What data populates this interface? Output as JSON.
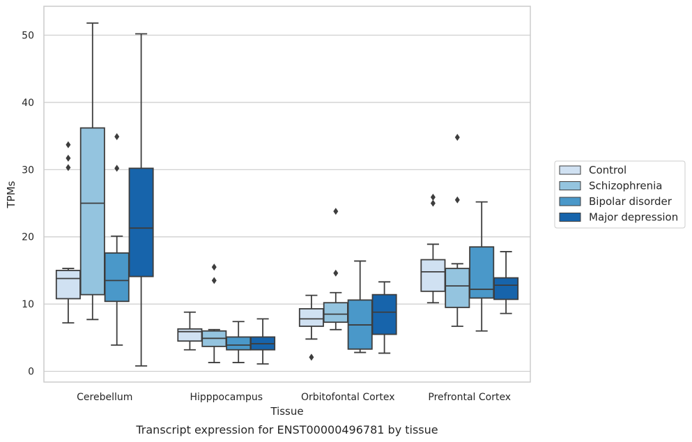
{
  "caption": "Transcript expression for ENST00000496781 by tissue",
  "chart_data": {
    "type": "box",
    "xlabel": "Tissue",
    "ylabel": "TPMs",
    "ylim": [
      -1.6,
      54.3
    ],
    "yticks": [
      0,
      10,
      20,
      30,
      40,
      50
    ],
    "grid": true,
    "legend_position": "right",
    "categories": [
      "Cerebellum",
      "Hipppocampus",
      "Orbitofontal Cortex",
      "Prefrontal Cortex"
    ],
    "series": [
      {
        "name": "Control",
        "color": "#d0e1f2",
        "boxes": [
          {
            "whislo": 7.2,
            "q1": 10.8,
            "med": 13.8,
            "q3": 15.0,
            "whishi": 15.3,
            "fliers": [
              30.3,
              31.7,
              33.7
            ]
          },
          {
            "whislo": 3.2,
            "q1": 4.5,
            "med": 5.9,
            "q3": 6.3,
            "whishi": 8.8,
            "fliers": []
          },
          {
            "whislo": 4.8,
            "q1": 6.7,
            "med": 7.8,
            "q3": 9.3,
            "whishi": 11.3,
            "fliers": [
              2.1
            ]
          },
          {
            "whislo": 10.2,
            "q1": 11.9,
            "med": 14.8,
            "q3": 16.6,
            "whishi": 18.9,
            "fliers": [
              25.0,
              25.9
            ]
          }
        ]
      },
      {
        "name": "Schizophrenia",
        "color": "#94c4df",
        "boxes": [
          {
            "whislo": 7.7,
            "q1": 11.4,
            "med": 25.0,
            "q3": 36.2,
            "whishi": 51.8,
            "fliers": []
          },
          {
            "whislo": 1.3,
            "q1": 3.7,
            "med": 4.9,
            "q3": 6.0,
            "whishi": 6.2,
            "fliers": [
              13.5,
              15.5
            ]
          },
          {
            "whislo": 6.2,
            "q1": 7.3,
            "med": 8.5,
            "q3": 10.2,
            "whishi": 11.7,
            "fliers": [
              14.6,
              23.8
            ]
          },
          {
            "whislo": 6.7,
            "q1": 9.5,
            "med": 12.7,
            "q3": 15.3,
            "whishi": 16.0,
            "fliers": [
              25.5,
              34.8
            ]
          }
        ]
      },
      {
        "name": "Bipolar disorder",
        "color": "#4a98c9",
        "boxes": [
          {
            "whislo": 3.9,
            "q1": 10.4,
            "med": 13.5,
            "q3": 17.6,
            "whishi": 20.1,
            "fliers": [
              30.2,
              34.9
            ]
          },
          {
            "whislo": 1.3,
            "q1": 3.2,
            "med": 3.9,
            "q3": 5.1,
            "whishi": 7.4,
            "fliers": []
          },
          {
            "whislo": 2.8,
            "q1": 3.3,
            "med": 6.9,
            "q3": 10.6,
            "whishi": 16.4,
            "fliers": []
          },
          {
            "whislo": 6.0,
            "q1": 10.9,
            "med": 12.2,
            "q3": 18.5,
            "whishi": 25.2,
            "fliers": []
          }
        ]
      },
      {
        "name": "Major depression",
        "color": "#1764ab",
        "boxes": [
          {
            "whislo": 0.8,
            "q1": 14.1,
            "med": 21.3,
            "q3": 30.2,
            "whishi": 50.2,
            "fliers": []
          },
          {
            "whislo": 1.1,
            "q1": 3.2,
            "med": 4.1,
            "q3": 5.1,
            "whishi": 7.8,
            "fliers": []
          },
          {
            "whislo": 2.7,
            "q1": 5.5,
            "med": 8.8,
            "q3": 11.4,
            "whishi": 13.3,
            "fliers": []
          },
          {
            "whislo": 8.6,
            "q1": 10.7,
            "med": 12.8,
            "q3": 13.9,
            "whishi": 17.8,
            "fliers": []
          }
        ]
      }
    ]
  }
}
